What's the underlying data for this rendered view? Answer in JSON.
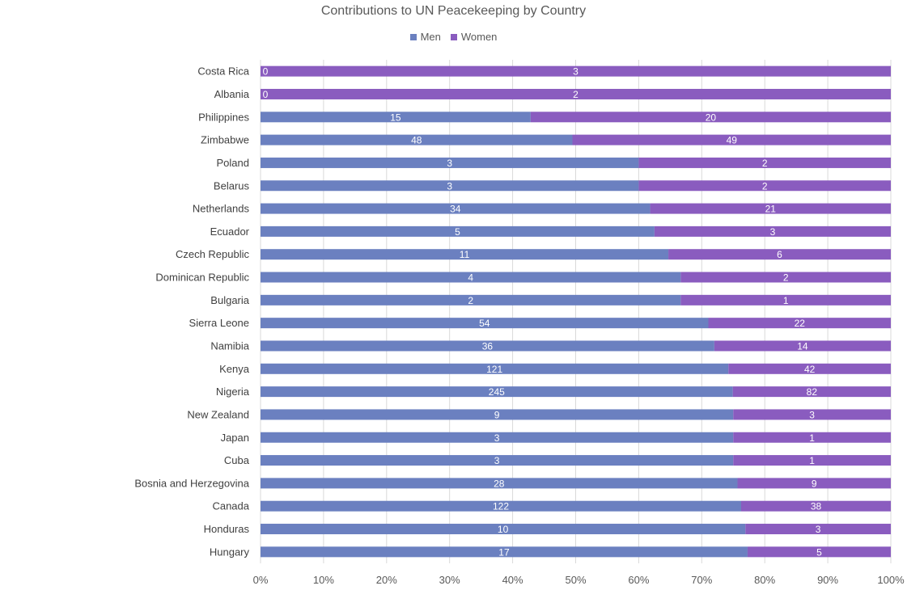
{
  "chart_data": {
    "type": "bar",
    "orientation": "horizontal",
    "stacking": "percent",
    "title": "Contributions to UN Peacekeeping by Country",
    "categories": [
      "Costa Rica",
      "Albania",
      "Philippines",
      "Zimbabwe",
      "Poland",
      "Belarus",
      "Netherlands",
      "Ecuador",
      "Czech Republic",
      "Dominican Republic",
      "Bulgaria",
      "Sierra Leone",
      "Namibia",
      "Kenya",
      "Nigeria",
      "New Zealand",
      "Japan",
      "Cuba",
      "Bosnia and Herzegovina",
      "Canada",
      "Honduras",
      "Hungary"
    ],
    "series": [
      {
        "name": "Men",
        "color": "#6b80c0",
        "values": [
          0,
          0,
          15,
          48,
          3,
          3,
          34,
          5,
          11,
          4,
          2,
          54,
          36,
          121,
          245,
          9,
          3,
          3,
          28,
          122,
          10,
          17
        ]
      },
      {
        "name": "Women",
        "color": "#8a5cbf",
        "values": [
          3,
          2,
          20,
          49,
          2,
          2,
          21,
          3,
          6,
          2,
          1,
          22,
          14,
          42,
          82,
          3,
          1,
          1,
          9,
          38,
          3,
          5
        ]
      }
    ],
    "x_ticks": [
      "0%",
      "10%",
      "20%",
      "30%",
      "40%",
      "50%",
      "60%",
      "70%",
      "80%",
      "90%",
      "100%"
    ],
    "xlim": [
      0,
      100
    ],
    "xlabel": "",
    "ylabel": "",
    "grid": "vertical",
    "legend_position": "top"
  }
}
